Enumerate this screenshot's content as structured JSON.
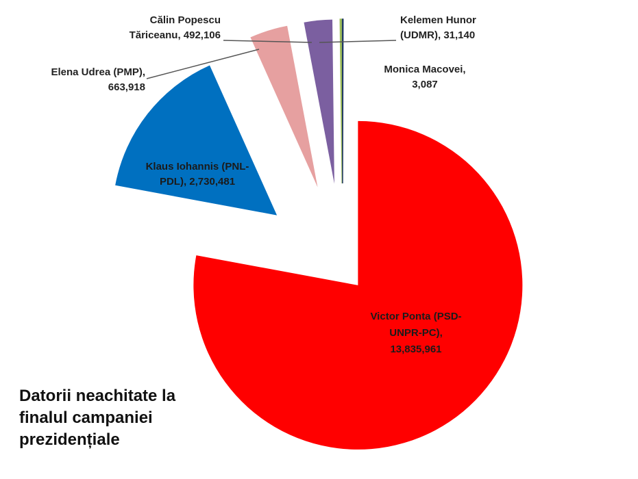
{
  "chart_data": {
    "type": "pie",
    "exploded": true,
    "caption_lines": [
      "Datorii neachitate la",
      "finalul campaniei",
      "prezidențiale"
    ],
    "slices": [
      {
        "label_lines": [
          "Victor Ponta (PSD-",
          "UNPR-PC),",
          "13,835,961"
        ],
        "value": 13835961,
        "color": "#ff0000"
      },
      {
        "label_lines": [
          "Klaus Iohannis (PNL-",
          "PDL), 2,730,481"
        ],
        "value": 2730481,
        "color": "#0070c0"
      },
      {
        "label_lines": [
          "Elena Udrea (PMP),",
          "663,918"
        ],
        "value": 663918,
        "color": "#e6a0a0"
      },
      {
        "label_lines": [
          "Călin Popescu",
          "Tăriceanu, 492,106"
        ],
        "value": 492106,
        "color": "#7b5fa0"
      },
      {
        "label_lines": [
          "Kelemen Hunor",
          "(UDMR), 31,140"
        ],
        "value": 31140,
        "color": "#9bbb59"
      },
      {
        "label_lines": [
          "Monica Macovei,",
          "3,087"
        ],
        "value": 3087,
        "color": "#1f3864"
      }
    ]
  }
}
